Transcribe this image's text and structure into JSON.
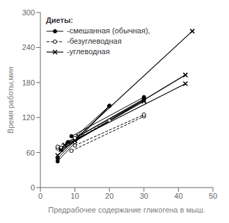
{
  "chart_data": {
    "type": "line",
    "title": "Диеты:",
    "xlabel": "Предрабочее содержание гликогена в мыш.",
    "ylabel": "Время работы,мин",
    "xlim": [
      0,
      50
    ],
    "ylim": [
      0,
      300
    ],
    "xticks": [
      0,
      10,
      20,
      30,
      40,
      50
    ],
    "yticks": [
      0,
      60,
      120,
      180,
      240,
      300
    ],
    "grid": false,
    "legend": "upper left",
    "series": [
      {
        "name": "-смешанная (обычная),",
        "color": "#000000",
        "marker": "circle",
        "line_style": "solid",
        "lines": [
          {
            "x": [
              5,
              20
            ],
            "y": [
              45,
              140
            ]
          },
          {
            "x": [
              5,
              20
            ],
            "y": [
              50,
              140
            ]
          },
          {
            "x": [
              6,
              20
            ],
            "y": [
              65,
              140
            ]
          },
          {
            "x": [
              8,
              30
            ],
            "y": [
              78,
              152
            ]
          },
          {
            "x": [
              9,
              30
            ],
            "y": [
              88,
              155
            ]
          }
        ]
      },
      {
        "name": "-безуглеводная",
        "color": "#000000",
        "marker": "open_circle",
        "line_style": "dashed",
        "lines": [
          {
            "x": [
              5,
              10
            ],
            "y": [
              67,
              78
            ]
          },
          {
            "x": [
              5,
              10
            ],
            "y": [
              70,
              85
            ]
          },
          {
            "x": [
              6,
              20
            ],
            "y": [
              68,
              115
            ]
          },
          {
            "x": [
              9,
              30
            ],
            "y": [
              63,
              122
            ]
          },
          {
            "x": [
              10,
              30
            ],
            "y": [
              72,
              125
            ]
          }
        ]
      },
      {
        "name": "-углеводная",
        "color": "#000000",
        "marker": "x",
        "line_style": "solid",
        "lines": [
          {
            "x": [
              5,
              44
            ],
            "y": [
              55,
              268
            ]
          },
          {
            "x": [
              6,
              42
            ],
            "y": [
              65,
              193
            ]
          },
          {
            "x": [
              7,
              42
            ],
            "y": [
              73,
              178
            ]
          },
          {
            "x": [
              10,
              30
            ],
            "y": [
              80,
              148
            ]
          },
          {
            "x": [
              11,
              30
            ],
            "y": [
              88,
              150
            ]
          }
        ]
      }
    ]
  }
}
